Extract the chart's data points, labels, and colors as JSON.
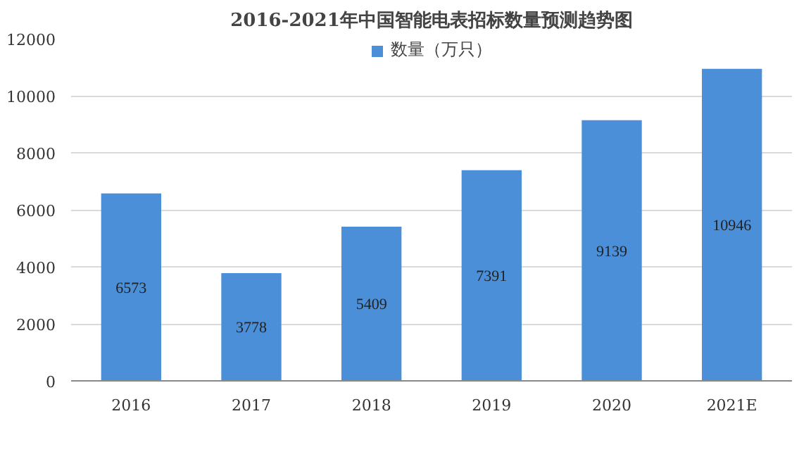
{
  "chart_data": {
    "type": "bar",
    "title": "2016-2021年中国智能电表招标数量预测趋势图",
    "categories": [
      "2016",
      "2017",
      "2018",
      "2019",
      "2020",
      "2021E"
    ],
    "series": [
      {
        "name": "数量（万只）",
        "color": "#4a8fd8",
        "values": [
          6573,
          3778,
          5409,
          7391,
          9139,
          10946
        ]
      }
    ],
    "ylim": [
      0,
      12000
    ],
    "yticks": [
      0,
      2000,
      4000,
      6000,
      8000,
      10000,
      12000
    ],
    "grid": "y",
    "legend": "top",
    "data_labels": true
  }
}
